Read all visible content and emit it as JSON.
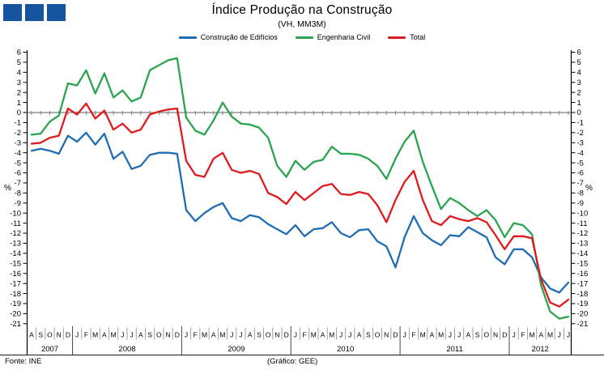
{
  "header": {
    "title": "Índice Produção na Construção",
    "subtitle": "(VH, MM3M)",
    "logo_color": "#15549E"
  },
  "footer": {
    "source": "Fonte: INE",
    "credit": "(Gráfico:  GEE)"
  },
  "chart_data": {
    "type": "line",
    "title": "Índice Produção na Construção",
    "subtitle": "(VH, MM3M)",
    "ylabel": "%",
    "ylim": [
      -21,
      6
    ],
    "ytick_step": 1,
    "grid": "zero-line-only",
    "legend_position": "top",
    "zero_line_color": "#808080",
    "x_months": [
      "A",
      "S",
      "O",
      "N",
      "D",
      "J",
      "F",
      "M",
      "A",
      "M",
      "J",
      "J",
      "A",
      "S",
      "O",
      "N",
      "D",
      "J",
      "F",
      "M",
      "A",
      "M",
      "J",
      "J",
      "A",
      "S",
      "O",
      "N",
      "D",
      "J",
      "F",
      "M",
      "A",
      "M",
      "J",
      "J",
      "A",
      "S",
      "O",
      "N",
      "D",
      "J",
      "F",
      "M",
      "A",
      "M",
      "J",
      "J",
      "A",
      "S",
      "O",
      "N",
      "D",
      "J",
      "F",
      "M",
      "A",
      "M",
      "J",
      "J"
    ],
    "year_groups": [
      {
        "label": "2007",
        "count": 5
      },
      {
        "label": "2008",
        "count": 12
      },
      {
        "label": "2009",
        "count": 12
      },
      {
        "label": "2010",
        "count": 12
      },
      {
        "label": "2011",
        "count": 12
      },
      {
        "label": "2012",
        "count": 7
      }
    ],
    "series": [
      {
        "name": "Construção de Edifícios",
        "color": "#1F6CB5",
        "values": [
          -3.8,
          -3.6,
          -3.8,
          -4.1,
          -2.3,
          -2.9,
          -2.0,
          -3.2,
          -2.1,
          -4.6,
          -3.9,
          -5.6,
          -5.3,
          -4.2,
          -4.0,
          -4.0,
          -4.1,
          -9.7,
          -10.8,
          -10.0,
          -9.4,
          -9.0,
          -10.5,
          -10.8,
          -10.2,
          -10.4,
          -11.1,
          -11.6,
          -12.1,
          -11.2,
          -12.3,
          -11.6,
          -11.5,
          -10.9,
          -12.0,
          -12.4,
          -11.7,
          -11.6,
          -12.8,
          -13.3,
          -15.4,
          -12.4,
          -10.3,
          -12.0,
          -12.7,
          -13.2,
          -12.2,
          -12.3,
          -11.4,
          -11.9,
          -12.4,
          -14.4,
          -15.1,
          -13.6,
          -13.6,
          -14.4,
          -16.4,
          -17.5,
          -17.9,
          -16.9
        ]
      },
      {
        "name": "Engenharia Civil",
        "color": "#2AA44E",
        "values": [
          -2.2,
          -2.1,
          -0.9,
          -0.3,
          2.9,
          2.7,
          4.2,
          1.9,
          3.9,
          1.5,
          2.2,
          1.1,
          1.5,
          4.2,
          4.7,
          5.2,
          5.4,
          -0.5,
          -1.8,
          -2.2,
          -0.8,
          1.0,
          -0.4,
          -1.1,
          -1.2,
          -1.5,
          -2.5,
          -5.3,
          -6.4,
          -4.8,
          -5.7,
          -4.9,
          -4.7,
          -3.4,
          -4.1,
          -4.1,
          -4.2,
          -4.6,
          -5.3,
          -6.6,
          -4.6,
          -2.9,
          -1.8,
          -4.9,
          -7.3,
          -9.6,
          -8.5,
          -9.0,
          -9.7,
          -10.3,
          -9.7,
          -10.7,
          -12.4,
          -11.0,
          -11.2,
          -12.1,
          -17.2,
          -19.8,
          -20.5,
          -20.3
        ]
      },
      {
        "name": "Total",
        "color": "#DE1B1E",
        "values": [
          -3.1,
          -3.0,
          -2.5,
          -2.3,
          0.4,
          -0.2,
          0.9,
          -0.6,
          0.2,
          -1.7,
          -1.1,
          -2.0,
          -1.7,
          -0.2,
          0.1,
          0.3,
          0.4,
          -4.8,
          -6.2,
          -6.4,
          -4.6,
          -4.0,
          -5.7,
          -6.0,
          -5.8,
          -6.1,
          -8.0,
          -8.4,
          -9.1,
          -7.9,
          -8.7,
          -8.0,
          -7.3,
          -7.1,
          -8.1,
          -8.2,
          -7.9,
          -8.1,
          -9.2,
          -10.9,
          -8.7,
          -6.9,
          -5.8,
          -8.7,
          -10.8,
          -11.2,
          -10.3,
          -10.6,
          -10.8,
          -10.5,
          -10.9,
          -12.2,
          -13.6,
          -12.3,
          -12.3,
          -12.5,
          -16.6,
          -18.9,
          -19.3,
          -18.6
        ]
      }
    ]
  }
}
